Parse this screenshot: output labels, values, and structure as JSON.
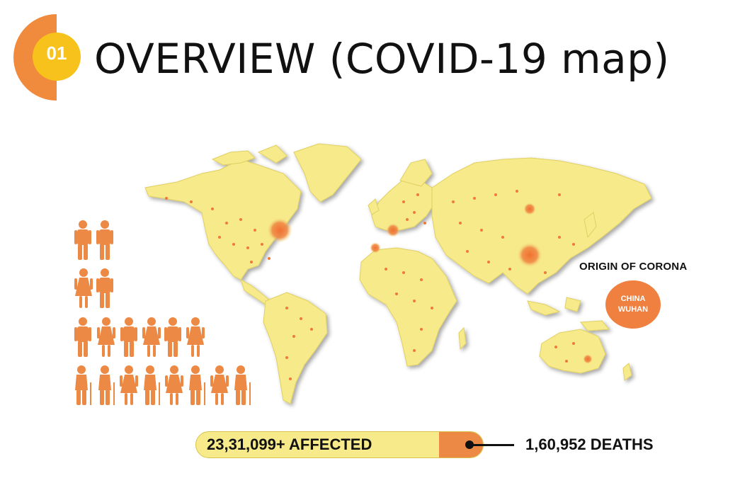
{
  "header": {
    "badge_number": "01",
    "title": "OVERVIEW (COVID-19 map)"
  },
  "origin": {
    "label": "ORIGIN OF CORONA",
    "line1": "CHINA",
    "line2": "WUHAN"
  },
  "stats": {
    "affected": "23,31,099+ AFFECTED",
    "deaths": "1,60,952  DEATHS"
  },
  "colors": {
    "accent_orange": "#f08040",
    "badge_yellow": "#f7c21b",
    "map_fill": "#f6ea8a",
    "figure_orange": "#ec8a45"
  },
  "icons": [
    "world-map-icon",
    "person-icon"
  ]
}
